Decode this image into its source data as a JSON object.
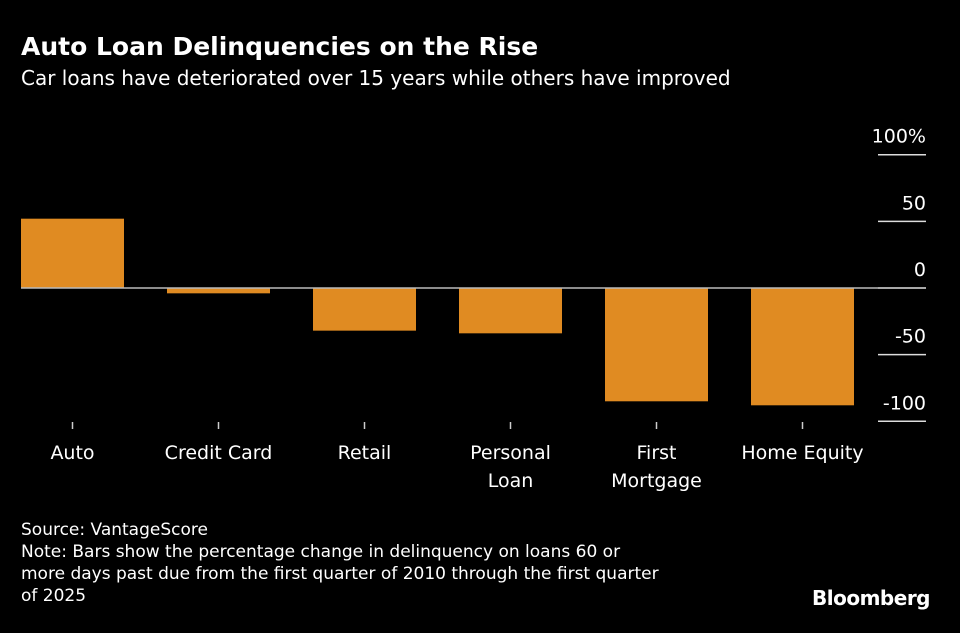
{
  "chart_data": {
    "type": "bar",
    "title": "Auto Loan Delinquencies on the Rise",
    "subtitle": "Car loans have deteriorated over 15 years while others have improved",
    "categories": [
      [
        "Auto"
      ],
      [
        "Credit Card"
      ],
      [
        "Retail"
      ],
      [
        "Personal",
        "Loan"
      ],
      [
        "First",
        "Mortgage"
      ],
      [
        "Home Equity"
      ]
    ],
    "values": [
      52,
      -4,
      -32,
      -34,
      -85,
      -88
    ],
    "ylim": [
      -100,
      100
    ],
    "yticks": [
      {
        "v": 100,
        "label": "100%"
      },
      {
        "v": 50,
        "label": "50"
      },
      {
        "v": 0,
        "label": "0"
      },
      {
        "v": -50,
        "label": "-50"
      },
      {
        "v": -100,
        "label": "-100"
      }
    ],
    "xlabel": "",
    "ylabel": "",
    "bar_color": "#e08b22",
    "grid": false
  },
  "footer": {
    "source": "Source: VantageScore",
    "note_lines": [
      "Note: Bars show the percentage change in delinquency on loans 60 or",
      "more days past due from the first quarter of 2010 through the first quarter",
      "of 2025"
    ],
    "logo": "Bloomberg"
  }
}
